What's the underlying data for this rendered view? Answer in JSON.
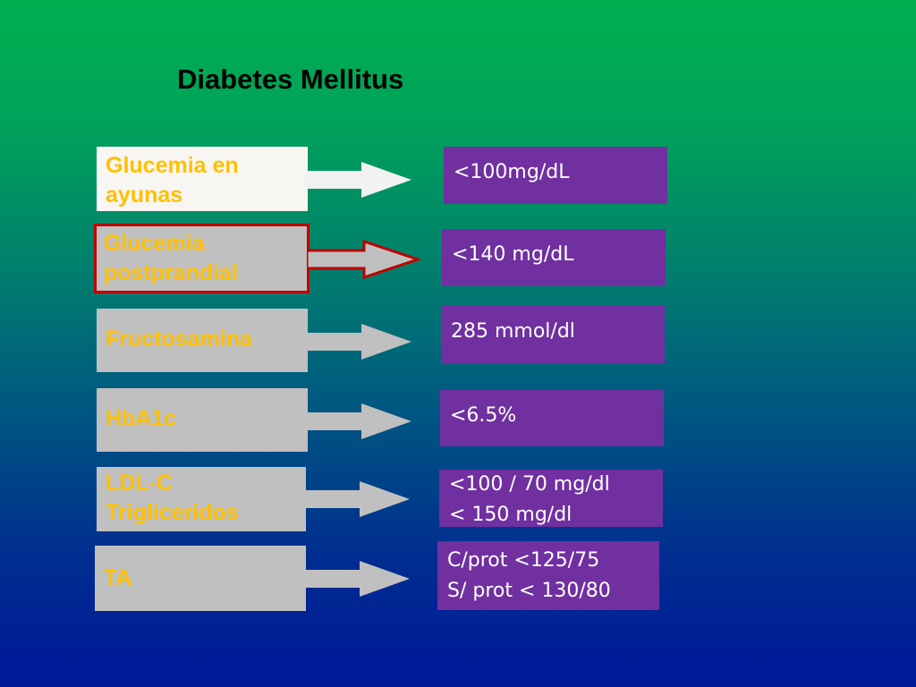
{
  "slide": {
    "title": "Diabetes Mellitus"
  },
  "rows": [
    {
      "label": "Glucemia en\nayunas",
      "value": "<100mg/dL"
    },
    {
      "label": "Glucemia\npostprandial",
      "value": "<140 mg/dL"
    },
    {
      "label": "Fructosamina",
      "value": "285 mmol/dl"
    },
    {
      "label": "HbA1c",
      "value": "<6.5%"
    },
    {
      "label": "LDL-C\nTrigliceridos",
      "value": "<100 / 70 mg/dl\n< 150 mg/dl"
    },
    {
      "label": "TA",
      "value": "C/prot <125/75\nS/ prot < 130/80"
    }
  ],
  "colors": {
    "label_box": "#c0c0c0",
    "label_box_first": "#f7f6f2",
    "label_text": "#ffc000",
    "value_box": "#7030a0",
    "value_text": "#ffffff",
    "highlight_border": "#c00000",
    "background_top": "#00b050",
    "background_bottom": "#00179a"
  }
}
